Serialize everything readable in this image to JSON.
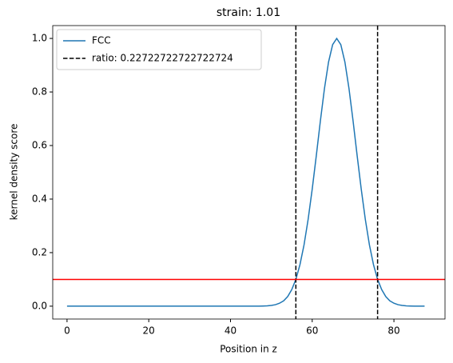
{
  "chart_data": {
    "type": "line",
    "title": "strain: 1.01",
    "xlabel": "Position in z",
    "ylabel": "kernel density score",
    "x": [
      0,
      10,
      20,
      30,
      40,
      45,
      46,
      47,
      48,
      49,
      50,
      51,
      52,
      53,
      54,
      55,
      56,
      57,
      58,
      59,
      60,
      61,
      62,
      63,
      64,
      65,
      66,
      67,
      68,
      69,
      70,
      71,
      72,
      73,
      74,
      75,
      76,
      77,
      78,
      79,
      80,
      81,
      82,
      83,
      84,
      85,
      86,
      87.5
    ],
    "series": [
      {
        "name": "FCC",
        "color": "#1f77b4",
        "values": [
          0,
          0,
          0,
          0,
          0,
          0,
          0.0001,
          0.0002,
          0.0006,
          0.0013,
          0.0028,
          0.0056,
          0.011,
          0.02,
          0.036,
          0.062,
          0.1,
          0.155,
          0.229,
          0.324,
          0.437,
          0.562,
          0.692,
          0.813,
          0.912,
          0.977,
          1.0,
          0.977,
          0.912,
          0.813,
          0.692,
          0.562,
          0.437,
          0.324,
          0.229,
          0.155,
          0.1,
          0.062,
          0.036,
          0.02,
          0.011,
          0.0056,
          0.0028,
          0.0013,
          0.0006,
          0.0002,
          0.0001,
          0
        ]
      }
    ],
    "vlines": {
      "name": "ratio: 0.22722722722722724",
      "color": "#000000",
      "x": [
        56,
        76
      ]
    },
    "hline": {
      "y": 0.1,
      "color": "#ff0000"
    },
    "xlim": [
      -3.5,
      92.5
    ],
    "ylim": [
      -0.048,
      1.048
    ],
    "xticks": [
      0,
      20,
      40,
      60,
      80
    ],
    "yticks": [
      {
        "value": 0,
        "label": "0.0"
      },
      {
        "value": 0.2,
        "label": "0.2"
      },
      {
        "value": 0.4,
        "label": "0.4"
      },
      {
        "value": 0.6,
        "label": "0.6"
      },
      {
        "value": 0.8,
        "label": "0.8"
      },
      {
        "value": 1,
        "label": "1.0"
      }
    ],
    "legend": "upper left"
  }
}
